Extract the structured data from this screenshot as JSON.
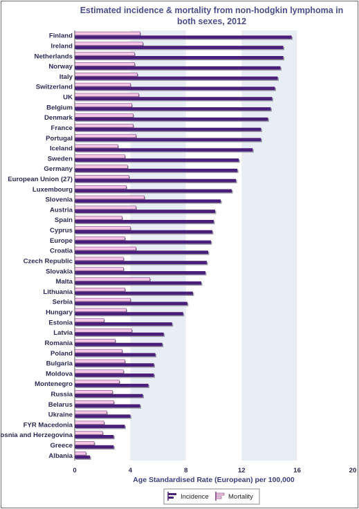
{
  "chart_data": {
    "type": "bar",
    "orientation": "horizontal",
    "title_lines": [
      "Estimated incidence & mortality from non-hodgkin lymphoma in",
      "both sexes, 2012"
    ],
    "xlabel": "Age Standardised Rate (European) per 100,000",
    "ylabel": "",
    "xlim": [
      0,
      20
    ],
    "xticks": [
      "0",
      "4",
      "8",
      "12",
      "16",
      "20"
    ],
    "grid": "vertical alternating bands",
    "legend": "bottom-right",
    "categories": [
      "Finland",
      "Ireland",
      "Netherlands",
      "Norway",
      "Italy",
      "Switzerland",
      "UK",
      "Belgium",
      "Denmark",
      "France",
      "Portugal",
      "Iceland",
      "Sweden",
      "Germany",
      "European Union (27)",
      "Luxembourg",
      "Slovenia",
      "Austria",
      "Spain",
      "Cyprus",
      "Europe",
      "Croatia",
      "Czech Republic",
      "Slovakia",
      "Malta",
      "Lithuania",
      "Serbia",
      "Hungary",
      "Estonia",
      "Latvia",
      "Romania",
      "Poland",
      "Bulgaria",
      "Moldova",
      "Montenegro",
      "Russia",
      "Belarus",
      "Ukraine",
      "FYR Macedonia",
      "Bosnia and Herzegovina",
      "Greece",
      "Albania"
    ],
    "series": [
      {
        "name": "Mortality",
        "color": "#f3c6e6",
        "values": [
          4.7,
          4.9,
          4.3,
          4.3,
          4.5,
          4.0,
          4.6,
          4.1,
          4.2,
          4.2,
          4.4,
          3.1,
          3.6,
          3.8,
          3.9,
          3.7,
          5.0,
          4.4,
          3.4,
          4.0,
          3.6,
          4.4,
          3.5,
          3.5,
          5.4,
          3.6,
          4.0,
          3.7,
          2.1,
          4.1,
          2.9,
          3.4,
          3.6,
          3.5,
          3.2,
          2.7,
          2.8,
          2.3,
          2.1,
          2.0,
          1.4,
          0.8
        ]
      },
      {
        "name": "Incidence",
        "color": "#4a1f7a",
        "values": [
          15.6,
          15.0,
          15.0,
          14.8,
          14.6,
          14.4,
          14.2,
          14.1,
          13.9,
          13.4,
          13.4,
          12.8,
          11.8,
          11.7,
          11.6,
          11.3,
          10.5,
          10.1,
          10.0,
          9.9,
          9.8,
          9.6,
          9.5,
          9.4,
          9.1,
          8.5,
          8.1,
          7.8,
          7.0,
          6.4,
          6.3,
          5.8,
          5.7,
          5.7,
          5.3,
          4.9,
          4.7,
          4.0,
          3.6,
          2.8,
          2.8,
          1.1
        ]
      }
    ]
  }
}
